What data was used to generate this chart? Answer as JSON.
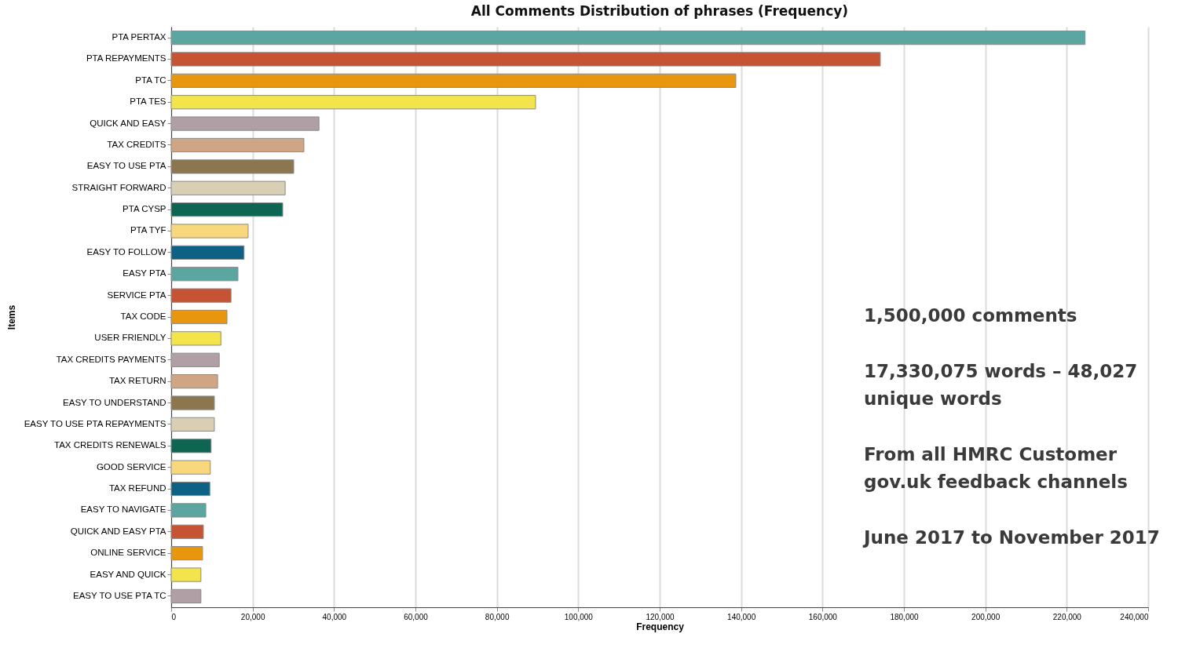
{
  "chart_data": {
    "type": "bar",
    "orientation": "horizontal",
    "title": "All Comments Distribution of phrases (Frequency)",
    "xlabel": "Frequency",
    "ylabel": "Items",
    "categories": [
      "PTA PERTAX",
      "PTA REPAYMENTS",
      "PTA TC",
      "PTA TES",
      "QUICK AND EASY",
      "TAX CREDITS",
      "EASY TO USE PTA",
      "STRAIGHT FORWARD",
      "PTA CYSP",
      "PTA TYF",
      "EASY TO FOLLOW",
      "EASY PTA",
      "SERVICE PTA",
      "TAX CODE",
      "USER FRIENDLY",
      "TAX CREDITS PAYMENTS",
      "TAX RETURN",
      "EASY TO UNDERSTAND",
      "EASY TO USE PTA REPAYMENTS",
      "TAX CREDITS RENEWALS",
      "GOOD SERVICE",
      "TAX REFUND",
      "EASY TO NAVIGATE",
      "QUICK AND EASY PTA",
      "ONLINE SERVICE",
      "EASY AND QUICK",
      "EASY TO USE PTA TC"
    ],
    "values": [
      224500,
      174200,
      138700,
      89500,
      36300,
      32600,
      30100,
      28000,
      27400,
      18900,
      17900,
      16400,
      14700,
      13700,
      12200,
      11800,
      11400,
      10600,
      10600,
      9800,
      9600,
      9500,
      8500,
      7900,
      7700,
      7300,
      7300
    ],
    "colors": [
      "#5ba6a0",
      "#c65434",
      "#e8960e",
      "#f3e44c",
      "#b0a0a6",
      "#cfa583",
      "#8c7650",
      "#d9cfb4",
      "#0e6552",
      "#f9d77c",
      "#0c6184",
      "#5ba6a0",
      "#c65434",
      "#e8960e",
      "#f3e44c",
      "#b0a0a6",
      "#cfa583",
      "#8c7650",
      "#d9cfb4",
      "#0e6552",
      "#f9d77c",
      "#0c6184",
      "#5ba6a0",
      "#c65434",
      "#e8960e",
      "#f3e44c",
      "#b0a0a6"
    ],
    "xlim": [
      0,
      240000
    ],
    "xticks": [
      0,
      {
        "value": 20000,
        "label": "20,000"
      },
      {
        "value": 40000,
        "label": "40,000"
      },
      {
        "value": 60000,
        "label": "60,000"
      },
      {
        "value": 80000,
        "label": "80,000"
      },
      {
        "value": 100000,
        "label": "100,000"
      },
      {
        "value": 120000,
        "label": "120,000"
      },
      {
        "value": 140000,
        "label": "140,000"
      },
      {
        "value": 160000,
        "label": "160,000"
      },
      {
        "value": 180000,
        "label": "180,000"
      },
      {
        "value": 200000,
        "label": "200,000"
      },
      {
        "value": 220000,
        "label": "220,000"
      },
      {
        "value": 240000,
        "label": "240,000"
      }
    ],
    "grid": "x",
    "annotations": [
      "1,500,000 comments",
      "17,330,075 words – 48,027 unique words",
      "From all HMRC Customer gov.uk feedback channels",
      "June 2017 to November 2017"
    ]
  }
}
